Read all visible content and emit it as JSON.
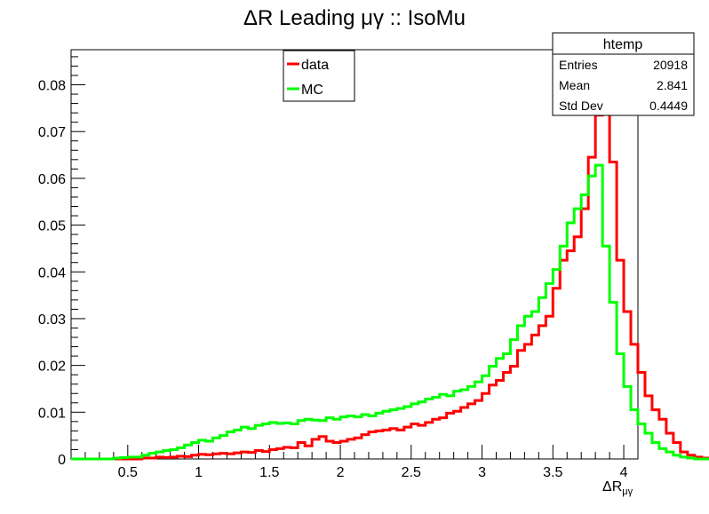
{
  "chart_data": {
    "type": "line",
    "title": "ΔR Leading μγ :: IsoMu",
    "xlabel": "ΔR",
    "xlabel_sub": "μγ",
    "ylabel": "",
    "xlim": [
      0.1,
      4.1
    ],
    "ylim": [
      0,
      0.0875
    ],
    "x_ticks": [
      0.5,
      1,
      1.5,
      2,
      2.5,
      3,
      3.5,
      4
    ],
    "x_tick_labels": [
      "0.5",
      "1",
      "1.5",
      "2",
      "2.5",
      "3",
      "3.5",
      "4"
    ],
    "y_ticks": [
      0,
      0.01,
      0.02,
      0.03,
      0.04,
      0.05,
      0.06,
      0.07,
      0.08
    ],
    "y_tick_labels": [
      "0",
      "0.01",
      "0.02",
      "0.03",
      "0.04",
      "0.05",
      "0.06",
      "0.07",
      "0.08"
    ],
    "grid": false,
    "legend_position": "top-center",
    "bin_edges_start": 0.1,
    "bin_width": 0.05,
    "series": [
      {
        "name": "data",
        "color": "#ff0000",
        "values": [
          0,
          0,
          0,
          0,
          0,
          0,
          0,
          0,
          0,
          0,
          0.0002,
          0.0002,
          0.0004,
          0.0003,
          0.0004,
          0.0006,
          0.0005,
          0.0008,
          0.001,
          0.0009,
          0.0011,
          0.0012,
          0.0011,
          0.0013,
          0.0015,
          0.0014,
          0.0018,
          0.0016,
          0.002,
          0.0022,
          0.0025,
          0.0024,
          0.0035,
          0.0028,
          0.0042,
          0.0048,
          0.0038,
          0.0035,
          0.0038,
          0.0042,
          0.0045,
          0.0052,
          0.0058,
          0.006,
          0.0062,
          0.0065,
          0.0062,
          0.0068,
          0.0075,
          0.0072,
          0.0078,
          0.0085,
          0.0088,
          0.0098,
          0.0102,
          0.011,
          0.0118,
          0.0125,
          0.014,
          0.0158,
          0.0168,
          0.0185,
          0.0198,
          0.0232,
          0.0245,
          0.0265,
          0.0285,
          0.0305,
          0.0365,
          0.0425,
          0.0445,
          0.0475,
          0.0535,
          0.0645,
          0.0735,
          0.0835,
          0.0635,
          0.0425,
          0.0315,
          0.0245,
          0.0185,
          0.0135,
          0.0105,
          0.0085,
          0.0055,
          0.0035,
          0.0015,
          0.0008,
          0.0004,
          0.0002,
          0,
          0,
          0,
          0,
          0,
          0,
          0,
          0,
          0,
          0
        ]
      },
      {
        "name": "MC",
        "color": "#00ff00",
        "values": [
          0,
          0,
          0,
          0,
          0,
          0,
          0.0002,
          0.0003,
          0.0004,
          0.0004,
          0.0008,
          0.0012,
          0.0015,
          0.0018,
          0.002,
          0.0024,
          0.003,
          0.0035,
          0.004,
          0.0038,
          0.0045,
          0.005,
          0.0058,
          0.0062,
          0.0068,
          0.0065,
          0.0072,
          0.0075,
          0.0078,
          0.0076,
          0.0077,
          0.0075,
          0.0082,
          0.0085,
          0.0083,
          0.0082,
          0.0088,
          0.0085,
          0.009,
          0.0092,
          0.009,
          0.0095,
          0.0092,
          0.0098,
          0.0102,
          0.0105,
          0.0108,
          0.0112,
          0.0118,
          0.0122,
          0.0128,
          0.0132,
          0.0138,
          0.0135,
          0.0145,
          0.0148,
          0.0155,
          0.0165,
          0.0178,
          0.0198,
          0.0215,
          0.0225,
          0.0255,
          0.0285,
          0.0305,
          0.0315,
          0.0345,
          0.0375,
          0.0405,
          0.0455,
          0.0505,
          0.0535,
          0.0565,
          0.0605,
          0.0628,
          0.0455,
          0.0335,
          0.0225,
          0.0155,
          0.0105,
          0.0075,
          0.0055,
          0.0035,
          0.0022,
          0.0015,
          0.0008,
          0.0004,
          0.0002,
          0,
          0,
          0,
          0,
          0,
          0,
          0,
          0,
          0,
          0,
          0,
          0
        ]
      }
    ]
  },
  "stats_box": {
    "title": "htemp",
    "rows": [
      {
        "label": "Entries",
        "value": "20918"
      },
      {
        "label": "Mean",
        "value": "2.841"
      },
      {
        "label": "Std Dev",
        "value": "0.4449"
      }
    ]
  },
  "legend": {
    "items": [
      {
        "label": "data",
        "color": "#ff0000"
      },
      {
        "label": "MC",
        "color": "#00ff00"
      }
    ]
  }
}
